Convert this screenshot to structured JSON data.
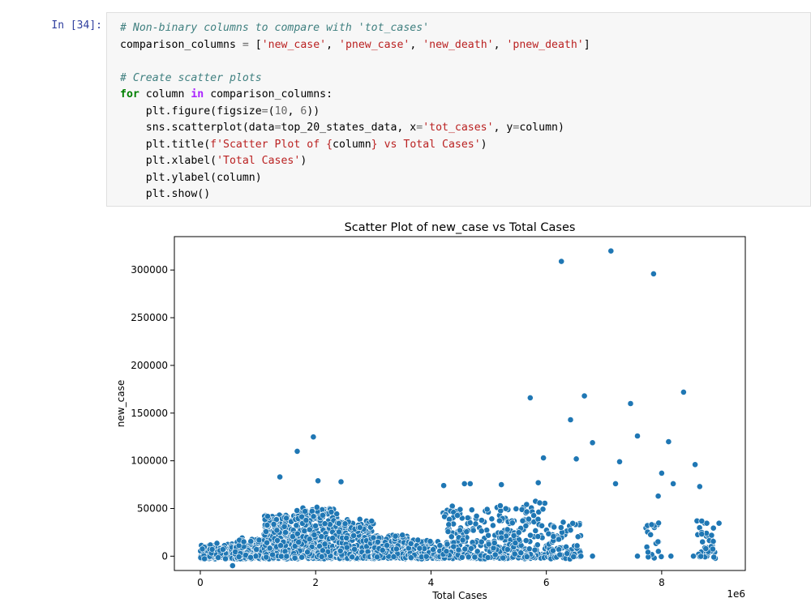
{
  "cell": {
    "prompt": "In [34]:",
    "code_lines": [
      [
        {
          "t": "# Non-binary columns to compare with 'tot_cases'",
          "c": "c"
        }
      ],
      [
        {
          "t": "comparison_columns ",
          "c": ""
        },
        {
          "t": "=",
          "c": "o"
        },
        {
          "t": " [",
          "c": ""
        },
        {
          "t": "'new_case'",
          "c": "s"
        },
        {
          "t": ", ",
          "c": ""
        },
        {
          "t": "'pnew_case'",
          "c": "s"
        },
        {
          "t": ", ",
          "c": ""
        },
        {
          "t": "'new_death'",
          "c": "s"
        },
        {
          "t": ", ",
          "c": ""
        },
        {
          "t": "'pnew_death'",
          "c": "s"
        },
        {
          "t": "]",
          "c": ""
        }
      ],
      [],
      [
        {
          "t": "# Create scatter plots",
          "c": "c"
        }
      ],
      [
        {
          "t": "for",
          "c": "k"
        },
        {
          "t": " column ",
          "c": ""
        },
        {
          "t": "in",
          "c": "ow"
        },
        {
          "t": " comparison_columns:",
          "c": ""
        }
      ],
      [
        {
          "t": "    plt.figure(figsize",
          "c": ""
        },
        {
          "t": "=",
          "c": "o"
        },
        {
          "t": "(",
          "c": ""
        },
        {
          "t": "10",
          "c": "m"
        },
        {
          "t": ", ",
          "c": ""
        },
        {
          "t": "6",
          "c": "m"
        },
        {
          "t": "))",
          "c": ""
        }
      ],
      [
        {
          "t": "    sns.scatterplot(data",
          "c": ""
        },
        {
          "t": "=",
          "c": "o"
        },
        {
          "t": "top_20_states_data, x",
          "c": ""
        },
        {
          "t": "=",
          "c": "o"
        },
        {
          "t": "'tot_cases'",
          "c": "s"
        },
        {
          "t": ", y",
          "c": ""
        },
        {
          "t": "=",
          "c": "o"
        },
        {
          "t": "column)",
          "c": ""
        }
      ],
      [
        {
          "t": "    plt.title(",
          "c": ""
        },
        {
          "t": "f'Scatter Plot of ",
          "c": "s"
        },
        {
          "t": "{",
          "c": "s"
        },
        {
          "t": "column",
          "c": ""
        },
        {
          "t": "}",
          "c": "s"
        },
        {
          "t": " vs Total Cases'",
          "c": "s"
        },
        {
          "t": ")",
          "c": ""
        }
      ],
      [
        {
          "t": "    plt.xlabel(",
          "c": ""
        },
        {
          "t": "'Total Cases'",
          "c": "s"
        },
        {
          "t": ")",
          "c": ""
        }
      ],
      [
        {
          "t": "    plt.ylabel(column)",
          "c": ""
        }
      ],
      [
        {
          "t": "    plt.show()",
          "c": ""
        }
      ]
    ]
  },
  "chart_data": {
    "type": "scatter",
    "title": "Scatter Plot of new_case vs Total Cases",
    "xlabel": "Total Cases",
    "ylabel": "new_case",
    "x_offset_text": "1e6",
    "xlim": [
      -0.45,
      9.45
    ],
    "ylim": [
      -15000,
      335000
    ],
    "x_ticks": [
      0,
      2,
      4,
      6,
      8
    ],
    "y_ticks": [
      0,
      50000,
      100000,
      150000,
      200000,
      250000,
      300000
    ],
    "grid": false,
    "legend": "none",
    "point_color": "#1f77b4",
    "notable_points": [
      {
        "x": 6.26,
        "y": 309000
      },
      {
        "x": 7.12,
        "y": 320000
      },
      {
        "x": 7.86,
        "y": 296000
      },
      {
        "x": 8.38,
        "y": 172000
      },
      {
        "x": 6.66,
        "y": 168000
      },
      {
        "x": 5.72,
        "y": 166000
      },
      {
        "x": 7.46,
        "y": 160000
      },
      {
        "x": 6.42,
        "y": 143000
      },
      {
        "x": 7.58,
        "y": 126000
      },
      {
        "x": 1.96,
        "y": 125000
      },
      {
        "x": 8.12,
        "y": 120000
      },
      {
        "x": 6.8,
        "y": 119000
      },
      {
        "x": 1.68,
        "y": 110000
      },
      {
        "x": 5.95,
        "y": 103000
      },
      {
        "x": 6.52,
        "y": 102000
      },
      {
        "x": 7.27,
        "y": 99000
      },
      {
        "x": 8.58,
        "y": 96000
      },
      {
        "x": 8.0,
        "y": 87000
      },
      {
        "x": 1.38,
        "y": 83000
      },
      {
        "x": 2.04,
        "y": 79000
      },
      {
        "x": 2.44,
        "y": 78000
      },
      {
        "x": 7.2,
        "y": 76000
      },
      {
        "x": 8.2,
        "y": 76000
      },
      {
        "x": 5.86,
        "y": 77000
      },
      {
        "x": 8.66,
        "y": 73000
      },
      {
        "x": 4.68,
        "y": 76000
      },
      {
        "x": 4.58,
        "y": 76000
      },
      {
        "x": 4.22,
        "y": 74000
      },
      {
        "x": 5.22,
        "y": 75000
      },
      {
        "x": 7.94,
        "y": 63000
      },
      {
        "x": 0.56,
        "y": -10000
      },
      {
        "x": 7.58,
        "y": 0
      },
      {
        "x": 8.16,
        "y": 0
      },
      {
        "x": 8.55,
        "y": 0
      },
      {
        "x": 6.8,
        "y": 0
      },
      {
        "x": 6.6,
        "y": 0
      }
    ],
    "dense_clusters": [
      {
        "x_range": [
          0.0,
          0.6
        ],
        "y_max": 14000,
        "count": 260
      },
      {
        "x_range": [
          0.6,
          1.1
        ],
        "y_max": 20000,
        "count": 180
      },
      {
        "x_range": [
          1.1,
          1.6
        ],
        "y_max": 45000,
        "count": 340
      },
      {
        "x_range": [
          1.6,
          2.4
        ],
        "y_max": 52000,
        "count": 480
      },
      {
        "x_range": [
          2.4,
          3.0
        ],
        "y_max": 40000,
        "count": 300
      },
      {
        "x_range": [
          3.0,
          3.6
        ],
        "y_max": 24000,
        "count": 240
      },
      {
        "x_range": [
          3.6,
          4.2
        ],
        "y_max": 18000,
        "count": 160
      },
      {
        "x_range": [
          4.2,
          5.4
        ],
        "y_max": 55000,
        "count": 260
      },
      {
        "x_range": [
          5.4,
          6.0
        ],
        "y_max": 60000,
        "count": 120
      },
      {
        "x_range": [
          6.0,
          6.6
        ],
        "y_max": 40000,
        "count": 80
      },
      {
        "x_range": [
          7.7,
          8.0
        ],
        "y_max": 40000,
        "count": 20
      },
      {
        "x_range": [
          8.6,
          9.0
        ],
        "y_max": 42000,
        "count": 40
      }
    ]
  }
}
